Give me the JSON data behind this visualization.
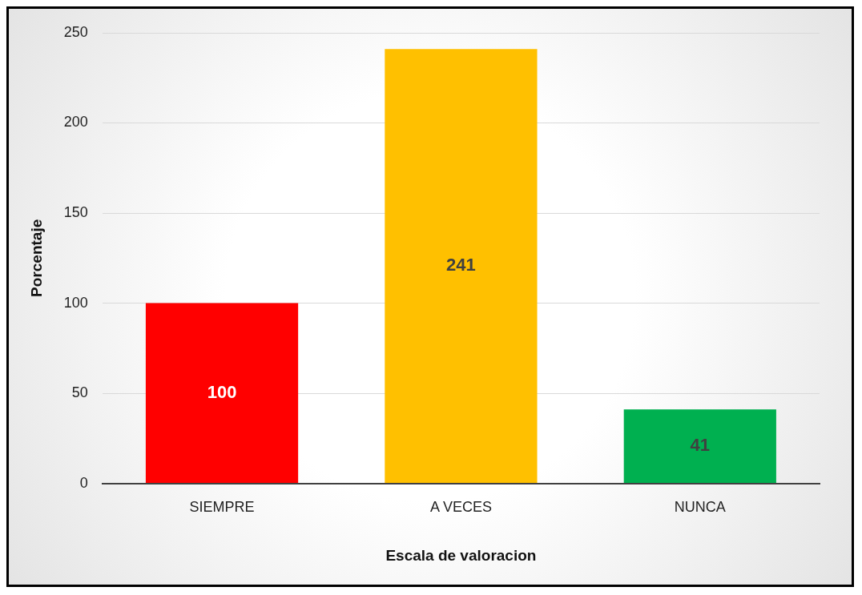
{
  "chart_data": {
    "type": "bar",
    "xlabel": "Escala de valoracion",
    "ylabel": "Porcentaje",
    "categories": [
      "SIEMPRE",
      "A VECES",
      "NUNCA"
    ],
    "values": [
      100,
      241,
      41
    ],
    "colors": [
      "#ff0000",
      "#ffc000",
      "#00b050"
    ],
    "ylim": [
      0,
      250
    ],
    "yticks": [
      0,
      50,
      100,
      150,
      200,
      250
    ],
    "grid": "y",
    "data_labels": true,
    "legend": false
  }
}
